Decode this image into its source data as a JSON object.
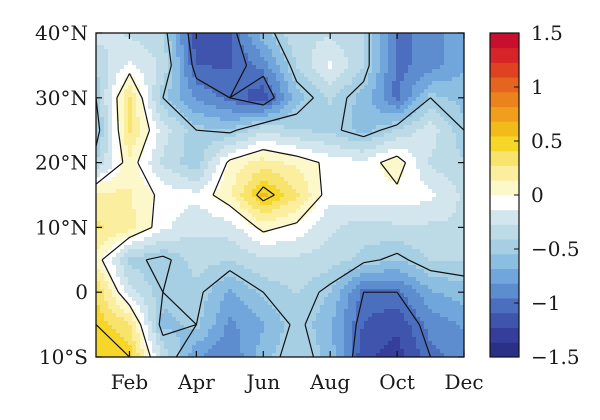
{
  "chart_data": {
    "type": "heatmap",
    "title": "",
    "xlabel": "",
    "ylabel": "",
    "x": [
      1,
      2,
      3,
      4,
      5,
      6,
      7,
      8,
      9,
      10,
      11,
      12
    ],
    "x_tick_labels": [
      "Feb",
      "Apr",
      "Jun",
      "Aug",
      "Oct",
      "Dec"
    ],
    "x_tick_values": [
      2,
      4,
      6,
      8,
      10,
      12
    ],
    "y": [
      -10,
      -5,
      0,
      5,
      10,
      15,
      20,
      25,
      30,
      35,
      40
    ],
    "y_tick_labels": [
      "10°S",
      "0",
      "10°N",
      "20°N",
      "30°N",
      "40°N"
    ],
    "y_tick_values": [
      -10,
      0,
      10,
      20,
      30,
      40
    ],
    "xlim": [
      1,
      12
    ],
    "ylim": [
      -10,
      40
    ],
    "contour_levels": [
      -1.5,
      -1.0,
      -0.5,
      0,
      0.5,
      1.0,
      1.5
    ],
    "z": [
      [
        0.55,
        0.5,
        -0.3,
        -0.8,
        -0.95,
        -0.6,
        -0.4,
        -0.6,
        -1.2,
        -1.3,
        -1.0,
        -0.9
      ],
      [
        0.5,
        0.3,
        -0.6,
        -0.5,
        -0.85,
        -0.7,
        -0.45,
        -0.65,
        -1.1,
        -1.2,
        -0.9,
        -0.8
      ],
      [
        0.4,
        -0.2,
        -0.5,
        -0.45,
        -0.7,
        -0.5,
        -0.4,
        -0.55,
        -1.0,
        -1.0,
        -0.7,
        -0.6
      ],
      [
        0.1,
        -0.45,
        -0.55,
        -0.35,
        -0.4,
        -0.3,
        -0.3,
        -0.35,
        -0.45,
        -0.55,
        -0.4,
        -0.4
      ],
      [
        0.3,
        0.2,
        -0.1,
        -0.25,
        -0.2,
        0.05,
        -0.05,
        -0.25,
        -0.35,
        -0.3,
        -0.3,
        -0.3
      ],
      [
        0.2,
        0.15,
        -0.05,
        -0.1,
        0.1,
        0.6,
        0.3,
        -0.1,
        -0.05,
        -0.05,
        -0.1,
        -0.3
      ],
      [
        -0.4,
        0.1,
        -0.3,
        -0.5,
        0.05,
        0.2,
        0.1,
        -0.05,
        -0.1,
        0.1,
        -0.3,
        -0.4
      ],
      [
        -0.6,
        0.3,
        -0.2,
        -0.5,
        -0.55,
        -0.3,
        -0.4,
        -0.45,
        -0.6,
        -0.4,
        -0.2,
        -0.5
      ],
      [
        -0.5,
        0.3,
        -0.5,
        -0.85,
        -1.0,
        -1.2,
        -0.6,
        -0.4,
        -0.6,
        -1.0,
        -0.5,
        -0.6
      ],
      [
        -0.4,
        -0.1,
        -0.3,
        -1.1,
        -1.1,
        -0.9,
        -0.4,
        -0.1,
        -0.4,
        -1.0,
        -0.9,
        -0.7
      ],
      [
        -0.2,
        -0.3,
        -0.4,
        -1.2,
        -1.1,
        -0.6,
        -0.3,
        -0.3,
        -0.4,
        -1.0,
        -0.9,
        -0.7
      ]
    ],
    "colorbar": {
      "tick_labels": [
        "1.5",
        "1",
        "0.5",
        "0",
        "−0.5",
        "−1",
        "−1.5"
      ],
      "tick_values": [
        1.5,
        1.0,
        0.5,
        0,
        -0.5,
        -1.0,
        -1.5
      ],
      "range": [
        -1.5,
        1.5
      ],
      "colors": [
        "#2a2f87",
        "#353f9b",
        "#3f54ac",
        "#4c6ebe",
        "#5d8ccf",
        "#70a6dc",
        "#8cbee2",
        "#a6cfe3",
        "#bcdbe7",
        "#d3e6ee",
        "#ffffff",
        "#fdf8c9",
        "#fbef9f",
        "#f8e36d",
        "#f6d629",
        "#f2bb1c",
        "#ef9f1c",
        "#eb831d",
        "#e5651f",
        "#df4221",
        "#d62528",
        "#c8102e"
      ]
    },
    "grid": false,
    "legend": "colorbar-right"
  }
}
